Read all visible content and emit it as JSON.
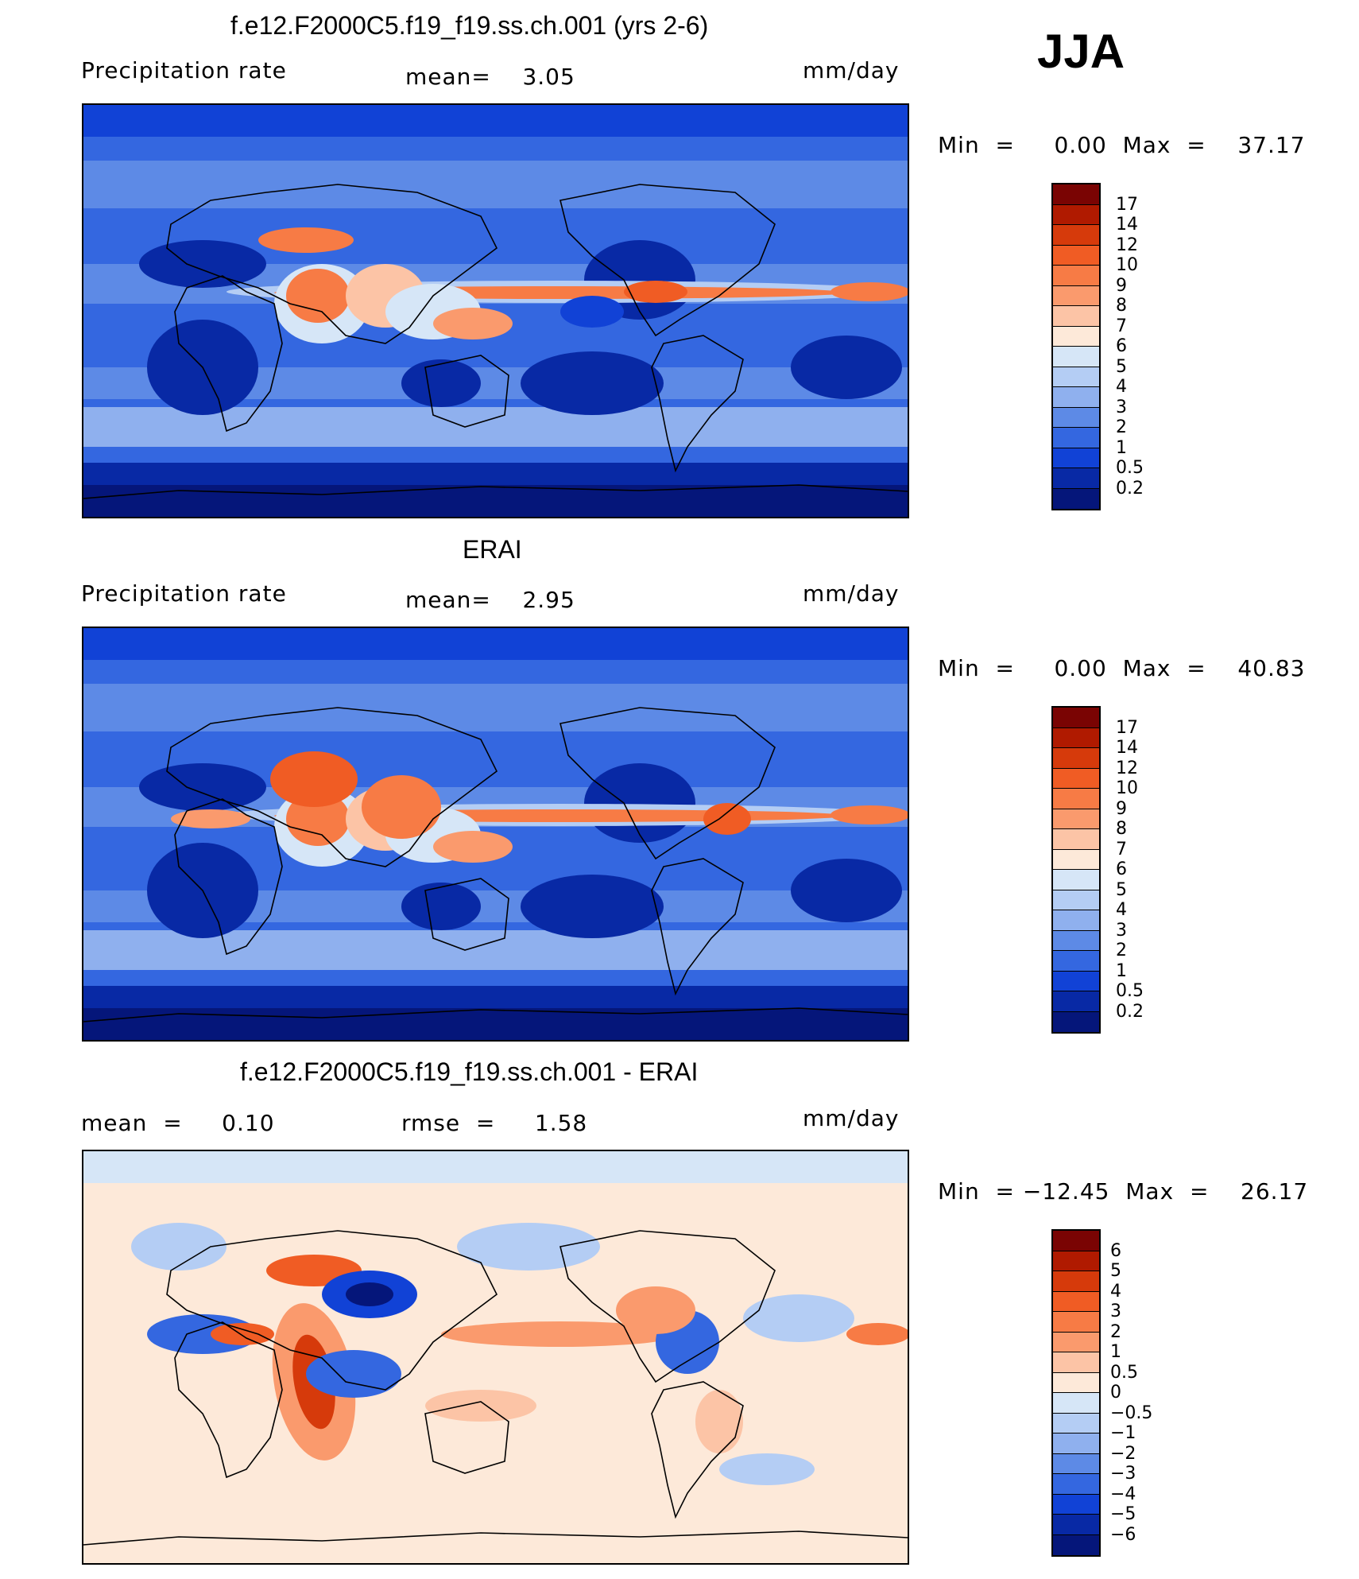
{
  "season": "JJA",
  "panels": [
    {
      "title": "f.e12.F2000C5.f19_f19.ss.ch.001 (yrs 2-6)",
      "left_label": "Precipitation  rate",
      "center_label": "mean=    3.05",
      "units": "mm/day",
      "minmax": "Min  =     0.00  Max  =    37.17",
      "kind": "model",
      "colorbar": {
        "labels": [
          "17",
          "14",
          "12",
          "10",
          "9",
          "8",
          "7",
          "6",
          "5",
          "4",
          "3",
          "2",
          "1",
          "0.5",
          "0.2"
        ],
        "colors": [
          "#7a0403",
          "#b01a00",
          "#d63a0b",
          "#f05c24",
          "#f77b45",
          "#fa9a6d",
          "#fcc4a6",
          "#fde9d9",
          "#d6e6f7",
          "#b4cdf4",
          "#8fb0ee",
          "#5d8ae6",
          "#3467e0",
          "#1142d6",
          "#0829a5",
          "#05167a"
        ]
      }
    },
    {
      "title": "ERAI",
      "left_label": "Precipitation  rate",
      "center_label": "mean=    2.95",
      "units": "mm/day",
      "minmax": "Min  =     0.00  Max  =    40.83",
      "kind": "obs",
      "colorbar": {
        "labels": [
          "17",
          "14",
          "12",
          "10",
          "9",
          "8",
          "7",
          "6",
          "5",
          "4",
          "3",
          "2",
          "1",
          "0.5",
          "0.2"
        ],
        "colors": [
          "#7a0403",
          "#b01a00",
          "#d63a0b",
          "#f05c24",
          "#f77b45",
          "#fa9a6d",
          "#fcc4a6",
          "#fde9d9",
          "#d6e6f7",
          "#b4cdf4",
          "#8fb0ee",
          "#5d8ae6",
          "#3467e0",
          "#1142d6",
          "#0829a5",
          "#05167a"
        ]
      }
    },
    {
      "title": "f.e12.F2000C5.f19_f19.ss.ch.001 - ERAI",
      "left_label": "mean  =     0.10",
      "center_label": "rmse  =     1.58",
      "units": "mm/day",
      "minmax": "Min  = −12.45  Max  =    26.17",
      "kind": "diff",
      "colorbar": {
        "labels": [
          "6",
          "5",
          "4",
          "3",
          "2",
          "1",
          "0.5",
          "0",
          "−0.5",
          "−1",
          "−2",
          "−3",
          "−4",
          "−5",
          "−6"
        ],
        "colors": [
          "#7a0403",
          "#b01a00",
          "#d63a0b",
          "#f05c24",
          "#f77b45",
          "#fa9a6d",
          "#fcc4a6",
          "#fde9d9",
          "#d6e6f7",
          "#b4cdf4",
          "#8fb0ee",
          "#5d8ae6",
          "#3467e0",
          "#1142d6",
          "#0829a5",
          "#05167a"
        ]
      }
    }
  ]
}
